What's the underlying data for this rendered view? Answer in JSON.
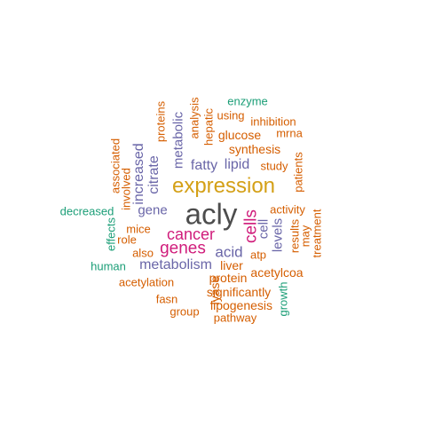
{
  "palette": {
    "gray": "#4d4d4d",
    "gold": "#d4a017",
    "magenta": "#d01c7b",
    "purple": "#6a66a8",
    "orange": "#d55e00",
    "green": "#1b9e77"
  },
  "words": [
    "acly",
    "expression",
    "genes",
    "cancer",
    "cells",
    "acid",
    "metabolism",
    "citrate",
    "increased",
    "fatty",
    "lipid",
    "gene",
    "metabolic",
    "cell",
    "levels",
    "liver",
    "glucose",
    "synthesis",
    "protein",
    "acetylcoa",
    "lyase",
    "significantly",
    "lipogenesis",
    "pathway",
    "acetylation",
    "mice",
    "role",
    "also",
    "atp",
    "activity",
    "study",
    "patients",
    "results",
    "may",
    "treatment",
    "using",
    "inhibition",
    "mrna",
    "hepatic",
    "analysis",
    "proteins",
    "associated",
    "involved",
    "effects",
    "fasn",
    "group",
    "decreased",
    "human",
    "enzyme",
    "growth"
  ]
}
